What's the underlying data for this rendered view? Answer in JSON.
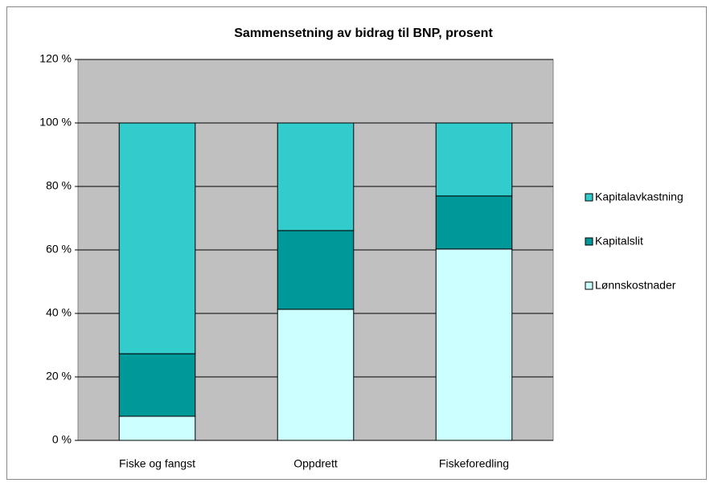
{
  "chart_data": {
    "type": "stacked_bar",
    "title": "Sammensetning av bidrag til BNP, prosent",
    "categories": [
      "Fiske og fangst",
      "Oppdrett",
      "Fiskeforedling"
    ],
    "series": [
      {
        "name": "Lønnskostnader",
        "color": "#ccffff",
        "values": [
          7.6,
          41.3,
          60.3
        ]
      },
      {
        "name": "Kapitalslit",
        "color": "#009999",
        "values": [
          19.7,
          24.8,
          16.7
        ]
      },
      {
        "name": "Kapitalavkastning",
        "color": "#33cccc",
        "values": [
          72.7,
          33.9,
          23.0
        ]
      }
    ],
    "ylim": [
      0,
      120
    ],
    "yticks": [
      {
        "value": 0,
        "label": "0 %"
      },
      {
        "value": 20,
        "label": "20 %"
      },
      {
        "value": 40,
        "label": "40 %"
      },
      {
        "value": 60,
        "label": "60 %"
      },
      {
        "value": 80,
        "label": "80 %"
      },
      {
        "value": 100,
        "label": "100 %"
      },
      {
        "value": 120,
        "label": "120 %"
      }
    ],
    "grid": true,
    "legend": "right",
    "plot_background": "#c0c0c0"
  }
}
